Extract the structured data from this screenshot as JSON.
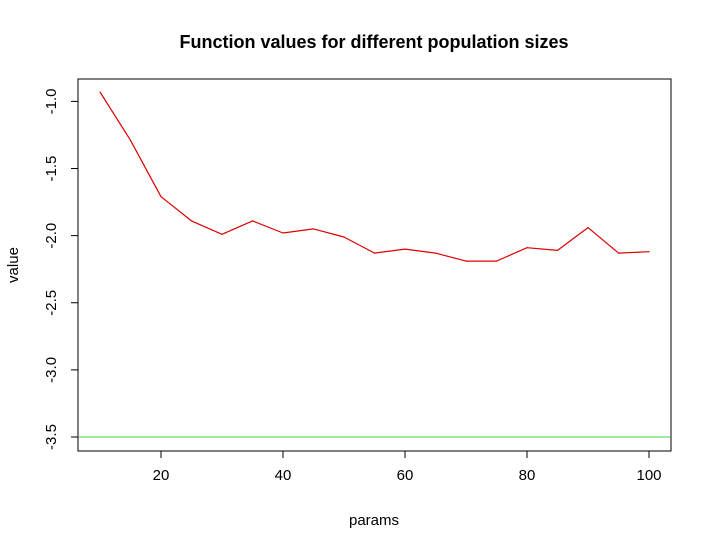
{
  "chart_data": {
    "type": "line",
    "title": "Function values for different population sizes",
    "xlabel": "params",
    "ylabel": "value",
    "xlim": [
      10,
      100
    ],
    "ylim": [
      -3.5,
      -0.93
    ],
    "x_ticks": [
      20,
      40,
      60,
      80,
      100
    ],
    "x_tick_labels": [
      "20",
      "40",
      "60",
      "80",
      "100"
    ],
    "y_ticks": [
      -1.0,
      -1.5,
      -2.0,
      -2.5,
      -3.0,
      -3.5
    ],
    "y_tick_labels": [
      "-1.0",
      "-1.5",
      "-2.0",
      "-2.5",
      "-3.0",
      "-3.5"
    ],
    "grid": false,
    "series": [
      {
        "color": "#dd0000",
        "x": [
          10,
          15,
          20,
          25,
          30,
          35,
          40,
          45,
          50,
          55,
          60,
          65,
          70,
          75,
          80,
          85,
          90,
          95,
          100
        ],
        "y": [
          -0.93,
          -1.29,
          -1.71,
          -1.89,
          -1.99,
          -1.89,
          -1.98,
          -1.95,
          -2.01,
          -2.13,
          -2.1,
          -2.13,
          -2.19,
          -2.19,
          -2.09,
          -2.11,
          -1.94,
          -2.13,
          -2.12
        ]
      }
    ],
    "hlines": [
      {
        "y": -3.5,
        "color": "#66dd66"
      }
    ]
  }
}
